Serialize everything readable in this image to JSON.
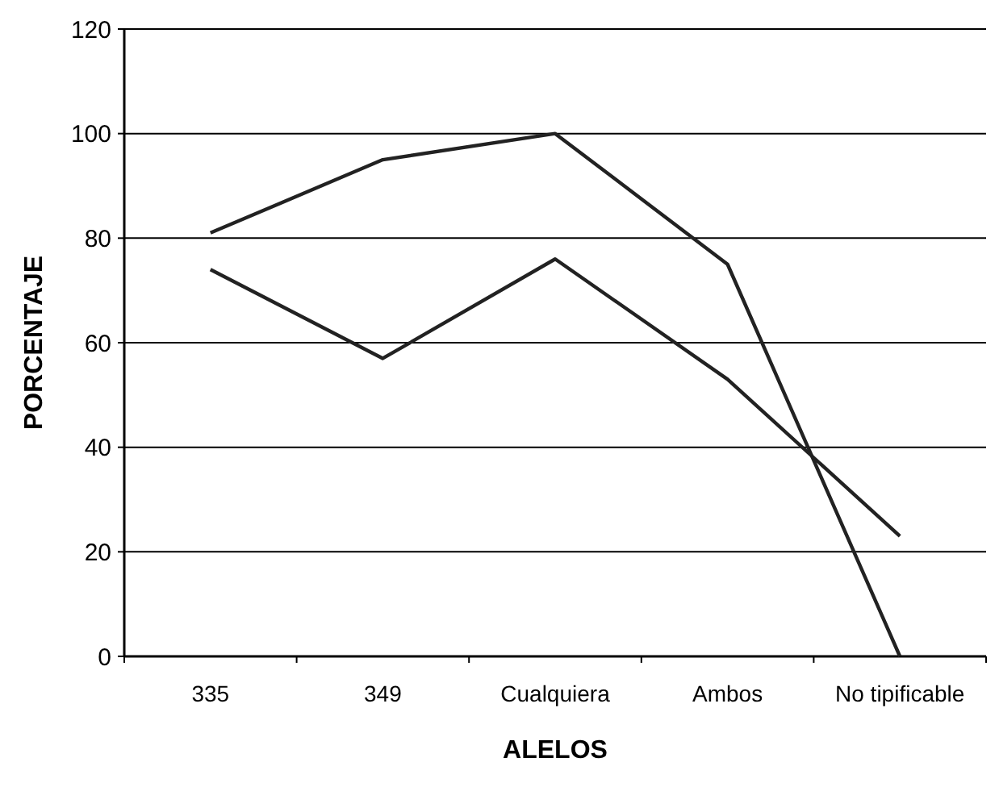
{
  "chart_data": {
    "type": "line",
    "xlabel": "ALELOS",
    "ylabel": "PORCENTAJE",
    "categories": [
      "335",
      "349",
      "Cualquiera",
      "Ambos",
      "No tipificable"
    ],
    "series": [
      {
        "color": "#222222",
        "values": [
          81,
          95,
          100,
          75,
          0
        ]
      },
      {
        "color": "#222222",
        "values": [
          74,
          57,
          76,
          53,
          23
        ]
      }
    ],
    "ylim": [
      0,
      120
    ],
    "yticks": [
      0,
      20,
      40,
      60,
      80,
      100,
      120
    ],
    "grid": "y",
    "marker": "none",
    "line_style": "solid"
  }
}
